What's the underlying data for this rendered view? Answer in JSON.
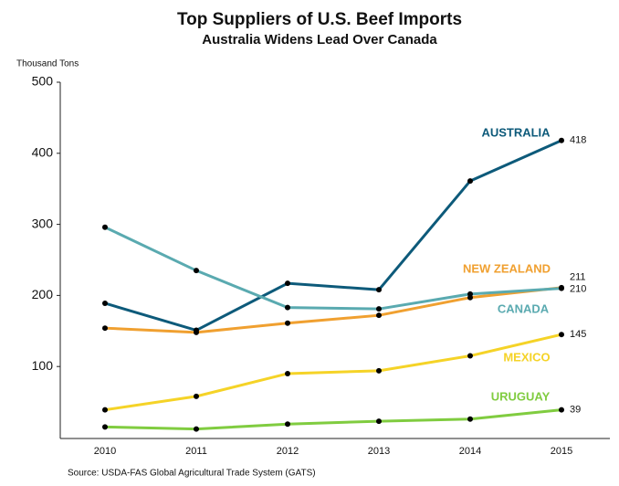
{
  "chart_data": {
    "type": "line",
    "title": "Top Suppliers of U.S. Beef Imports",
    "subtitle": "Australia Widens Lead Over Canada",
    "y_label": "Thousand Tons",
    "source": "Source:  USDA-FAS Global Agricultural Trade System (GATS)",
    "categories": [
      "2010",
      "2011",
      "2012",
      "2013",
      "2014",
      "2015"
    ],
    "ylim": [
      0,
      500
    ],
    "yticks": [
      100,
      200,
      300,
      400,
      500
    ],
    "grid": false,
    "series": [
      {
        "name": "AUSTRALIA",
        "color": "#0d5a7a",
        "values": [
          189,
          151,
          217,
          208,
          361,
          418
        ]
      },
      {
        "name": "NEW ZEALAND",
        "color": "#f0a030",
        "values": [
          154,
          148,
          161,
          172,
          197,
          211
        ]
      },
      {
        "name": "CANADA",
        "color": "#5aaab0",
        "values": [
          296,
          235,
          183,
          181,
          202,
          210
        ]
      },
      {
        "name": "MEXICO",
        "color": "#f5d327",
        "values": [
          39,
          58,
          90,
          94,
          115,
          145
        ]
      },
      {
        "name": "URUGUAY",
        "color": "#80cc40",
        "values": [
          15,
          12,
          19,
          23,
          26,
          39
        ]
      }
    ]
  }
}
